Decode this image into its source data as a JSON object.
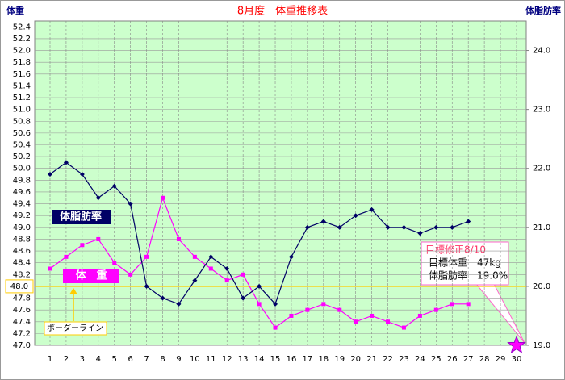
{
  "chart_data": {
    "type": "line",
    "title": "8月度　体重推移表",
    "y_label": "体重",
    "y2_label": "体脂肪率",
    "categories": [
      "1",
      "2",
      "3",
      "4",
      "5",
      "6",
      "7",
      "8",
      "9",
      "10",
      "11",
      "12",
      "13",
      "14",
      "15",
      "16",
      "17",
      "18",
      "19",
      "20",
      "21",
      "22",
      "23",
      "24",
      "25",
      "26",
      "27",
      "28",
      "29",
      "30"
    ],
    "series": [
      {
        "name": "体　重",
        "color": "#ff00ff",
        "axis": "y",
        "values": [
          48.3,
          48.5,
          48.7,
          48.8,
          48.4,
          48.2,
          48.5,
          49.5,
          48.8,
          48.5,
          48.3,
          48.1,
          48.2,
          47.7,
          47.3,
          47.5,
          47.6,
          47.7,
          47.6,
          47.4,
          47.5,
          47.4,
          47.3,
          47.5,
          47.6,
          47.7,
          47.7,
          null,
          null,
          null
        ]
      },
      {
        "name": "体脂肪率",
        "color": "#000066",
        "axis": "y2",
        "values": [
          21.9,
          22.1,
          21.9,
          21.5,
          21.7,
          21.4,
          20.0,
          19.8,
          19.7,
          20.1,
          20.5,
          20.3,
          19.8,
          20.0,
          19.7,
          20.5,
          21.0,
          21.1,
          21.0,
          21.2,
          21.3,
          21.0,
          21.0,
          20.9,
          21.0,
          21.0,
          21.1,
          null,
          null,
          null
        ]
      }
    ],
    "ylim": [
      47.0,
      52.5
    ],
    "yticks": [
      {
        "value": 47.0,
        "label": "47.0"
      },
      47.2,
      47.4,
      47.6,
      47.8,
      {
        "value": 48.0,
        "label": "48.0"
      },
      48.2,
      48.4,
      48.6,
      48.8,
      {
        "value": 49.0,
        "label": "49.0"
      },
      49.2,
      49.4,
      49.6,
      49.8,
      {
        "value": 50.0,
        "label": "50.0"
      },
      50.2,
      50.4,
      50.6,
      50.8,
      {
        "value": 51.0,
        "label": "51.0"
      },
      51.2,
      51.4,
      51.6,
      51.8,
      {
        "value": 52.0,
        "label": "52.0"
      },
      52.2,
      52.4
    ],
    "y2lim": [
      19.0,
      24.5
    ],
    "y2ticks": [
      {
        "value": 19.0,
        "label": "19.0"
      },
      {
        "value": 20.0,
        "label": "20.0"
      },
      {
        "value": 21.0,
        "label": "21.0"
      },
      {
        "value": 22.0,
        "label": "22.0"
      },
      {
        "value": 23.0,
        "label": "23.0"
      },
      {
        "value": 24.0,
        "label": "24.0"
      }
    ],
    "border_line": {
      "label": "ボーダーライン",
      "value": 48.0,
      "color": "#ffcc00"
    },
    "target": {
      "title": "目標修正8/10",
      "weight_text": "目標体重　47kg",
      "fat_text": "体脂肪率　19.0%",
      "category": "30",
      "value": 19.0,
      "color": "#ff00ff"
    },
    "grid": true
  }
}
